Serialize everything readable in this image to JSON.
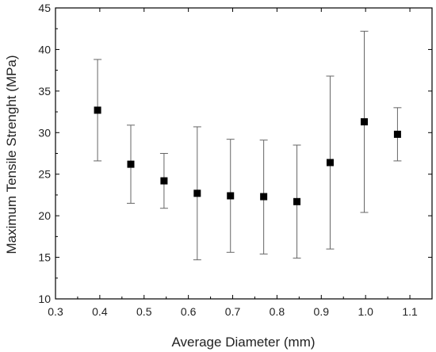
{
  "chart_data": {
    "type": "scatter",
    "title": "",
    "xlabel": "Average Diameter (mm)",
    "ylabel": "Maximum Tensile Strenght (MPa)",
    "xlim": [
      0.3,
      1.15
    ],
    "ylim": [
      10,
      45
    ],
    "x_ticks": [
      0.3,
      0.4,
      0.5,
      0.6,
      0.7,
      0.8,
      0.9,
      1.0,
      1.1
    ],
    "x_tick_labels": [
      "0.3",
      "0.4",
      "0.5",
      "0.6",
      "0.7",
      "0.8",
      "0.9",
      "1.0",
      "1.1"
    ],
    "y_ticks": [
      10,
      15,
      20,
      25,
      30,
      35,
      40,
      45
    ],
    "y_tick_labels": [
      "10",
      "15",
      "20",
      "25",
      "30",
      "35",
      "40",
      "45"
    ],
    "grid": false,
    "marker": "square",
    "series": [
      {
        "x": [
          0.395,
          0.47,
          0.545,
          0.62,
          0.695,
          0.77,
          0.845,
          0.92,
          0.997,
          1.072
        ],
        "y": [
          32.7,
          26.2,
          24.2,
          22.7,
          22.4,
          22.3,
          21.7,
          26.4,
          31.3,
          29.8
        ],
        "err_low": [
          26.6,
          21.5,
          20.9,
          14.7,
          15.6,
          15.4,
          14.9,
          16.0,
          20.4,
          26.6
        ],
        "err_high": [
          38.8,
          30.9,
          27.5,
          30.7,
          29.2,
          29.1,
          28.5,
          36.8,
          42.2,
          33.0
        ]
      }
    ]
  }
}
